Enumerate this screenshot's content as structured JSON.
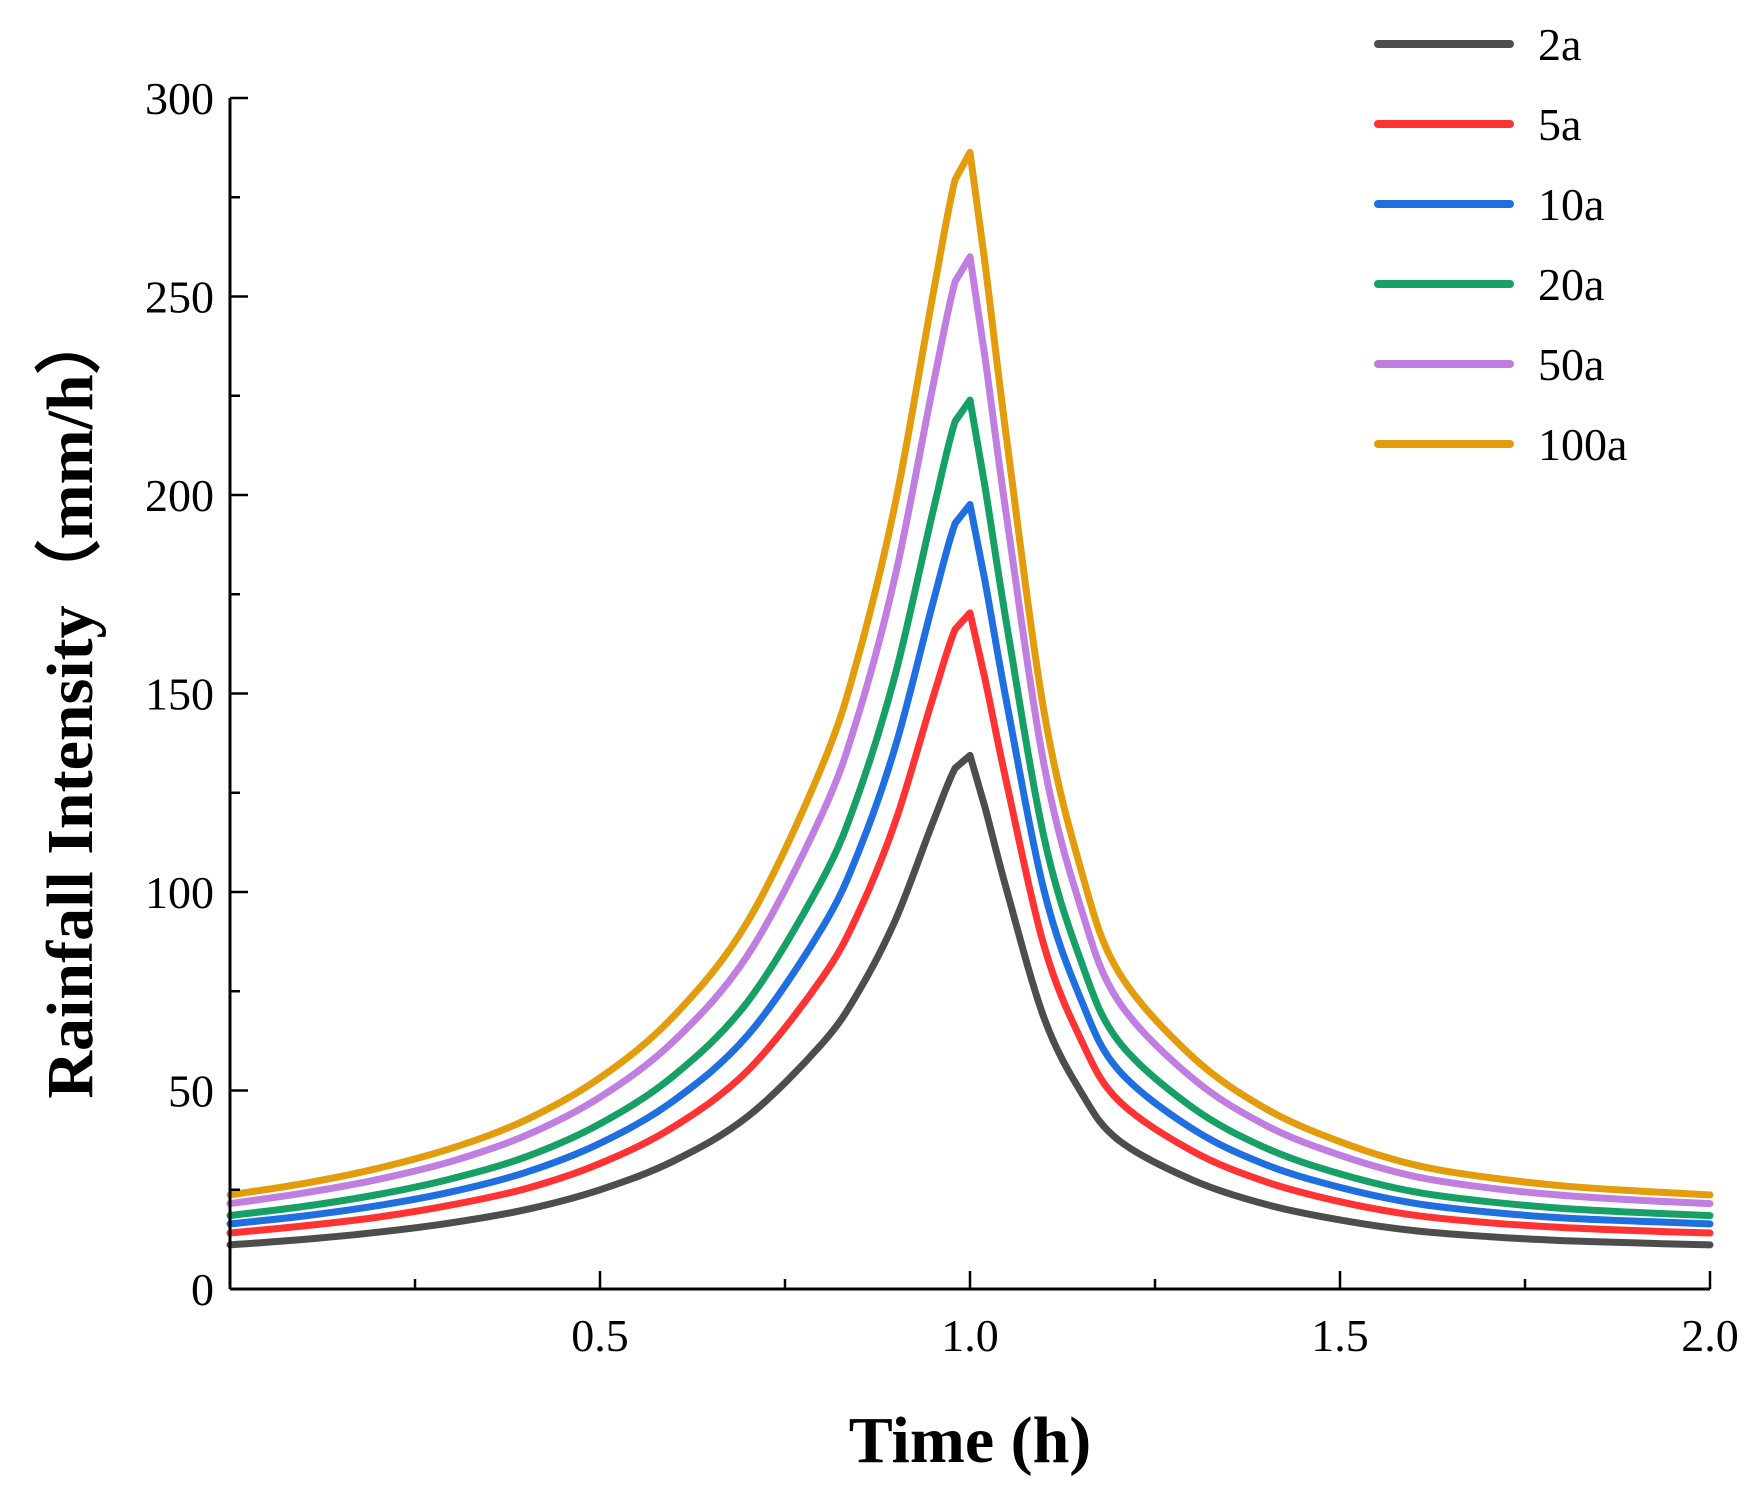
{
  "chart_data": {
    "type": "line",
    "title": "",
    "xlabel": "Time (h)",
    "ylabel": "Rainfall Intensity（mm/h）",
    "xlim": [
      0,
      2.0
    ],
    "ylim": [
      0,
      300
    ],
    "xticks": [
      0.5,
      1.0,
      1.5,
      2.0
    ],
    "xtick_labels": [
      "0.5",
      "1.0",
      "1.5",
      "2.0"
    ],
    "xminor": [
      0.25,
      0.75,
      1.25,
      1.75
    ],
    "yticks": [
      0,
      50,
      100,
      150,
      200,
      250,
      300
    ],
    "ytick_labels": [
      "0",
      "50",
      "100",
      "150",
      "200",
      "250",
      "300"
    ],
    "yminor": [
      25,
      75,
      125,
      175,
      225,
      275
    ],
    "grid": false,
    "legend_position": "top-right",
    "x": [
      0,
      0.1,
      0.2,
      0.3,
      0.4,
      0.5,
      0.6,
      0.7,
      0.8,
      0.85,
      0.9,
      0.95,
      0.98,
      1.0,
      1.02,
      1.05,
      1.1,
      1.15,
      1.2,
      1.3,
      1.4,
      1.5,
      1.6,
      1.7,
      1.8,
      1.9,
      2.0
    ],
    "series": [
      {
        "name": "2a",
        "color": "#4d4d4d",
        "values": [
          11.1,
          12.5,
          14.3,
          16.7,
          20.0,
          25.0,
          32.3,
          43.5,
          61.8,
          75.1,
          93.3,
          117.6,
          131.2,
          134.4,
          121.5,
          100.2,
          68.3,
          49.6,
          37.6,
          27.5,
          21.3,
          17.4,
          14.7,
          13.2,
          12.2,
          11.6,
          11.1
        ]
      },
      {
        "name": "5a",
        "color": "#ff3333",
        "values": [
          14.1,
          15.9,
          18.1,
          21.2,
          25.3,
          31.6,
          40.9,
          55.1,
          78.3,
          95.1,
          118.2,
          149.0,
          166.2,
          170.3,
          153.9,
          127.0,
          86.5,
          62.8,
          47.6,
          34.8,
          27.0,
          22.0,
          18.6,
          16.7,
          15.5,
          14.7,
          14.1
        ]
      },
      {
        "name": "10a",
        "color": "#1f6fe0",
        "values": [
          16.4,
          18.4,
          21.0,
          24.5,
          29.4,
          36.7,
          47.5,
          64.0,
          90.9,
          110.4,
          137.2,
          172.9,
          192.9,
          197.6,
          178.6,
          147.3,
          100.4,
          72.9,
          55.3,
          40.4,
          31.3,
          25.6,
          21.6,
          19.4,
          17.9,
          17.1,
          16.4
        ]
      },
      {
        "name": "20a",
        "color": "#16a065",
        "values": [
          18.5,
          20.8,
          23.8,
          27.8,
          33.3,
          41.6,
          53.8,
          72.5,
          103.0,
          125.1,
          155.5,
          195.9,
          218.6,
          223.9,
          202.4,
          166.9,
          113.8,
          82.6,
          62.6,
          45.8,
          35.5,
          29.0,
          24.5,
          22.0,
          20.3,
          19.3,
          18.5
        ]
      },
      {
        "name": "50a",
        "color": "#c07ee0",
        "values": [
          21.5,
          24.2,
          27.6,
          32.2,
          38.7,
          48.3,
          62.5,
          84.2,
          119.6,
          145.2,
          180.5,
          227.5,
          253.8,
          260.0,
          235.0,
          193.8,
          132.1,
          95.9,
          72.7,
          53.2,
          41.2,
          33.7,
          28.4,
          25.5,
          23.6,
          22.4,
          21.5
        ]
      },
      {
        "name": "100a",
        "color": "#e39d0c",
        "values": [
          23.7,
          26.6,
          30.4,
          35.5,
          42.6,
          53.2,
          68.8,
          92.7,
          131.7,
          160.0,
          198.8,
          250.5,
          279.5,
          286.3,
          258.8,
          213.4,
          145.5,
          105.6,
          80.1,
          58.6,
          45.4,
          37.1,
          31.3,
          28.1,
          26.0,
          24.7,
          23.7
        ]
      }
    ]
  }
}
